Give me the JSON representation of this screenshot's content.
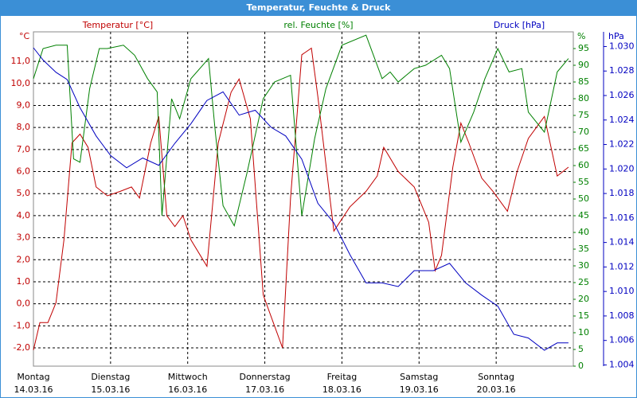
{
  "chart_data": {
    "type": "line",
    "title": "Temperatur, Feuchte & Druck",
    "xlim": [
      0,
      168
    ],
    "xticks": [
      {
        "value": 0,
        "label": "Montag",
        "sublabel": "14.03.16"
      },
      {
        "value": 24,
        "label": "Dienstag",
        "sublabel": "15.03.16"
      },
      {
        "value": 48,
        "label": "Mittwoch",
        "sublabel": "16.03.16"
      },
      {
        "value": 72,
        "label": "Donnerstag",
        "sublabel": "17.03.16"
      },
      {
        "value": 96,
        "label": "Freitag",
        "sublabel": "18.03.16"
      },
      {
        "value": 120,
        "label": "Samstag",
        "sublabel": "19.03.16"
      },
      {
        "value": 144,
        "label": "Sonntag",
        "sublabel": "20.03.16"
      }
    ],
    "grid": true,
    "y_label": "Temperatur [°C]",
    "y_unit": "°C",
    "ylim": [
      -2.83,
      12.34
    ],
    "yticks": [
      {
        "value": -2,
        "label": "-2,0"
      },
      {
        "value": -1,
        "label": "-1,0"
      },
      {
        "value": 0,
        "label": "0,0"
      },
      {
        "value": 1,
        "label": "1,0"
      },
      {
        "value": 2,
        "label": "2,0"
      },
      {
        "value": 3,
        "label": "3,0"
      },
      {
        "value": 4,
        "label": "4,0"
      },
      {
        "value": 5,
        "label": "5,0"
      },
      {
        "value": 6,
        "label": "6,0"
      },
      {
        "value": 7,
        "label": "7,0"
      },
      {
        "value": 8,
        "label": "8,0"
      },
      {
        "value": 9,
        "label": "9,0"
      },
      {
        "value": 10,
        "label": "10,0"
      },
      {
        "value": 11,
        "label": "11,0"
      }
    ],
    "y2_label": "rel. Feuchte [%]",
    "y2_unit": "%",
    "y2lim": [
      0,
      100
    ],
    "y2ticks": [
      0,
      5,
      10,
      15,
      20,
      25,
      30,
      35,
      40,
      45,
      50,
      55,
      60,
      65,
      70,
      75,
      80,
      85,
      90,
      95
    ],
    "y3_label": "Druck [hPa]",
    "y3_unit": "hPa",
    "y3lim": [
      1.0039,
      1.0312
    ],
    "y3ticks": [
      {
        "value": 1.004,
        "label": "1.004"
      },
      {
        "value": 1.006,
        "label": "1.006"
      },
      {
        "value": 1.008,
        "label": "1.008"
      },
      {
        "value": 1.01,
        "label": "1.010"
      },
      {
        "value": 1.012,
        "label": "1.012"
      },
      {
        "value": 1.014,
        "label": "1.014"
      },
      {
        "value": 1.016,
        "label": "1.016"
      },
      {
        "value": 1.018,
        "label": "1.018"
      },
      {
        "value": 1.02,
        "label": "1.020"
      },
      {
        "value": 1.022,
        "label": "1.022"
      },
      {
        "value": 1.024,
        "label": "1.024"
      },
      {
        "value": 1.026,
        "label": "1.026"
      },
      {
        "value": 1.028,
        "label": "1.028"
      },
      {
        "value": 1.03,
        "label": "1.030"
      }
    ],
    "series": [
      {
        "name": "Temperatur",
        "color": "#c00000",
        "axis": "y",
        "x": [
          0,
          2,
          4.5,
          7,
          9.5,
          12,
          14.5,
          17,
          19.5,
          23,
          27,
          30.5,
          33,
          36.5,
          39,
          41.5,
          44,
          46.5,
          49,
          54,
          57.5,
          61.5,
          64,
          67.5,
          71.5,
          75,
          77.5,
          80,
          83.5,
          86.5,
          88.5,
          93.5,
          98.5,
          103.5,
          107,
          109,
          113.5,
          118.5,
          123,
          125,
          127,
          130.5,
          133,
          135.5,
          139.5,
          143,
          147.5,
          150.5,
          154,
          159,
          163,
          166.5
        ],
        "values": [
          -2.1,
          -0.85,
          -0.85,
          0.05,
          2.9,
          7.3,
          7.7,
          7.1,
          5.3,
          4.9,
          5.1,
          5.3,
          4.8,
          7.3,
          8.5,
          4.0,
          3.5,
          4.0,
          2.9,
          1.7,
          7.3,
          9.6,
          10.2,
          8.4,
          0.4,
          -1.0,
          -2.0,
          4.8,
          11.3,
          11.6,
          9.4,
          3.3,
          4.4,
          5.1,
          5.8,
          7.1,
          6.0,
          5.3,
          3.7,
          1.5,
          2.2,
          6.2,
          8.2,
          7.3,
          5.7,
          5.1,
          4.2,
          6.0,
          7.5,
          8.5,
          5.8,
          6.2
        ]
      },
      {
        "name": "rel. Feuchte",
        "color": "#008000",
        "axis": "y2",
        "x": [
          0,
          3,
          7,
          10.5,
          12.5,
          14.5,
          17.5,
          20.5,
          23,
          28,
          31.5,
          35.5,
          38.5,
          40,
          43,
          45.5,
          49,
          54.5,
          56.5,
          59,
          62.5,
          66.5,
          71.5,
          75,
          80,
          83.5,
          87.5,
          91,
          96,
          103.5,
          108.5,
          111,
          113.5,
          118.5,
          122,
          127,
          129.5,
          133,
          137,
          140.5,
          144.5,
          148,
          152,
          154,
          159,
          163,
          166.5
        ],
        "values": [
          86,
          95,
          96,
          96,
          62,
          61,
          83,
          95,
          95,
          96,
          93,
          86,
          82,
          45,
          80,
          74,
          86,
          92,
          71,
          48,
          42,
          58,
          80,
          85,
          87,
          45,
          68,
          83,
          96,
          99,
          86,
          88,
          85,
          89,
          90,
          93,
          89,
          67,
          76,
          86,
          95,
          88,
          89,
          76,
          70,
          88,
          92
        ]
      },
      {
        "name": "Druck",
        "color": "#0000c0",
        "axis": "y3",
        "x": [
          0,
          3,
          7,
          10.5,
          14.5,
          19.5,
          24,
          29,
          34,
          39,
          44,
          49,
          54,
          59,
          64,
          69,
          74,
          78.5,
          83.5,
          88.5,
          93.5,
          98.5,
          103.5,
          108.5,
          113.5,
          118.5,
          124.5,
          129.5,
          134.5,
          139.5,
          144.5,
          149.5,
          154,
          159,
          163,
          166.5
        ],
        "values": [
          1.0299,
          1.0289,
          1.0279,
          1.0273,
          1.025,
          1.0227,
          1.0211,
          1.0201,
          1.0209,
          1.0203,
          1.0221,
          1.0237,
          1.0256,
          1.0263,
          1.0244,
          1.0248,
          1.0234,
          1.0227,
          1.0208,
          1.0172,
          1.0156,
          1.013,
          1.0107,
          1.0107,
          1.0104,
          1.0117,
          1.0117,
          1.0123,
          1.0107,
          1.0097,
          1.0088,
          1.0065,
          1.0062,
          1.0052,
          1.0058,
          1.0058
        ]
      }
    ]
  }
}
